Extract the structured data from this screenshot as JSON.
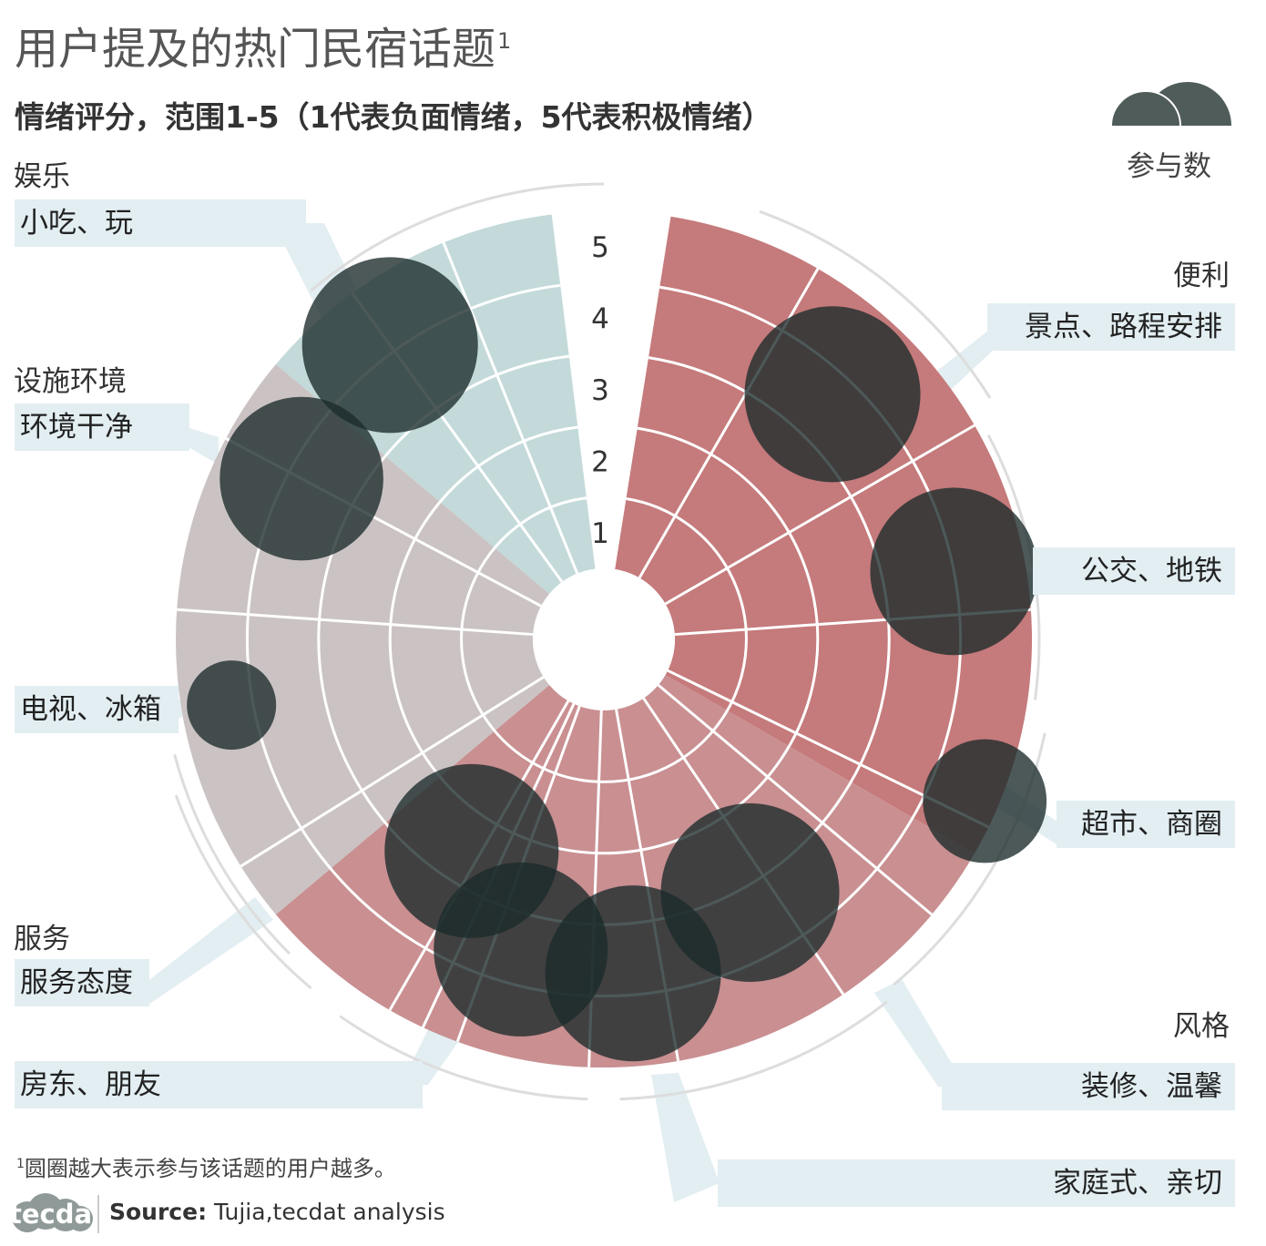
{
  "title": "用户提及的热门民宿话题",
  "title_sup": "1",
  "subtitle": "情绪评分，范围1-5（1代表负面情绪，5代表积极情绪）",
  "legend": {
    "label": "参与数"
  },
  "colors": {
    "entertainment": "#c4dada",
    "facilities": "#cbc3c3",
    "convenience": "#c57a7b",
    "service": "#c7a2a3",
    "style": "#c98f91",
    "bubble": "#1b2a2a",
    "topic_bg": "#e2eef2"
  },
  "categories": [
    {
      "name": "娱乐",
      "color": "#8fb3b3"
    },
    {
      "name": "设施环境",
      "color": "#9a8f8f"
    },
    {
      "name": "便利",
      "color": "#a0504f"
    },
    {
      "name": "服务",
      "color": "#a0504f"
    },
    {
      "name": "风格",
      "color": "#a0504f"
    }
  ],
  "topics": [
    "小吃、玩",
    "环境干净",
    "电视、冰箱",
    "服务态度",
    "房东、朋友",
    "景点、路程安排",
    "公交、地铁",
    "超市、商圈",
    "装修、温馨",
    "家庭式、亲切"
  ],
  "footnote": {
    "sup": "1",
    "text": "圆圈越大表示参与该话题的用户越多。"
  },
  "logo": "tecdat",
  "source": {
    "label": "Source:",
    "text": " Tujia,tecdat analysis"
  },
  "chart_data": {
    "type": "polar-bubble",
    "radial_axis": {
      "ticks": [
        "1",
        "2",
        "3",
        "4",
        "5"
      ],
      "range": [
        0,
        5
      ]
    },
    "categories": [
      {
        "name": "娱乐",
        "topics": [
          "小吃、玩"
        ]
      },
      {
        "name": "设施环境",
        "topics": [
          "环境干净",
          "电视、冰箱"
        ]
      },
      {
        "name": "服务",
        "topics": [
          "服务态度",
          "房东、朋友"
        ]
      },
      {
        "name": "风格",
        "topics": [
          "家庭式、亲切",
          "装修、温馨"
        ]
      },
      {
        "name": "便利",
        "topics": [
          "超市、商圈",
          "公交、地铁",
          "景点、路程安排"
        ]
      }
    ],
    "bubbles": [
      {
        "topic": "小吃、玩",
        "angle_deg": -36,
        "score": 4.1,
        "participants": 97
      },
      {
        "topic": "环境干净",
        "angle_deg": -62,
        "score": 3.8,
        "participants": 84
      },
      {
        "topic": "电视、冰箱",
        "angle_deg": -100,
        "score": 4.3,
        "participants": 25
      },
      {
        "topic": "服务态度",
        "angle_deg": -148,
        "score": 2.5,
        "participants": 95
      },
      {
        "topic": "房东、朋友",
        "angle_deg": -165,
        "score": 3.5,
        "participants": 95
      },
      {
        "topic": "家庭式、亲切",
        "angle_deg": 175,
        "score": 3.7,
        "participants": 97
      },
      {
        "topic": "装修、温馨",
        "angle_deg": 150,
        "score": 3.1,
        "participants": 100
      },
      {
        "topic": "超市、商圈",
        "angle_deg": 113,
        "score": 4.8,
        "participants": 48
      },
      {
        "topic": "公交、地铁",
        "angle_deg": 79,
        "score": 4.0,
        "participants": 88
      },
      {
        "topic": "景点、路程安排",
        "angle_deg": 43,
        "score": 3.7,
        "participants": 97
      }
    ]
  }
}
